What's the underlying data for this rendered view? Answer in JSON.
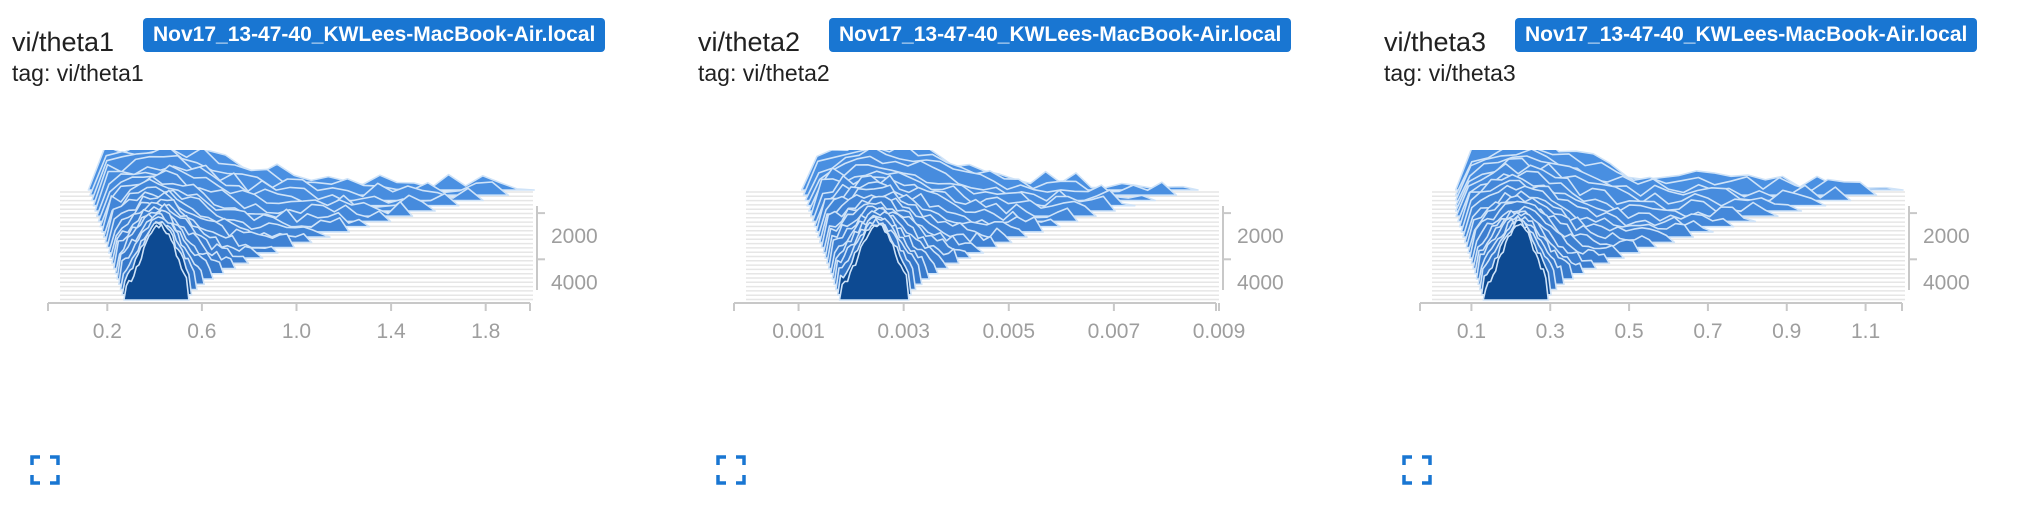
{
  "colors": {
    "accent": "#1976d2",
    "dark_blue": "#0d4a92",
    "mid_blue": "#4a90e2",
    "light_blue": "#a9d0f5",
    "grid": "#e6e6e6",
    "tick": "#9e9e9e"
  },
  "cards": [
    {
      "title": "vi/theta1",
      "run": "Nov17_13-47-40_KWLees-MacBook-Air.local",
      "tag": "tag: vi/theta1",
      "expand_icon": "fullscreen-icon"
    },
    {
      "title": "vi/theta2",
      "run": "Nov17_13-47-40_KWLees-MacBook-Air.local",
      "tag": "tag: vi/theta2",
      "expand_icon": "fullscreen-icon"
    },
    {
      "title": "vi/theta3",
      "run": "Nov17_13-47-40_KWLees-MacBook-Air.local",
      "tag": "tag: vi/theta3",
      "expand_icon": "fullscreen-icon"
    }
  ],
  "chart_data": [
    {
      "type": "histogram-offset",
      "title": "vi/theta1",
      "x_ticks": [
        "0.2",
        "0.6",
        "1.0",
        "1.4",
        "1.8"
      ],
      "x_tick_values": [
        0.2,
        0.6,
        1.0,
        1.4,
        1.8
      ],
      "xlim": [
        0.0,
        2.0
      ],
      "y_ticks": [
        "2000",
        "4000"
      ],
      "y_tick_values": [
        2000,
        4000
      ],
      "ylim": [
        0,
        5000
      ],
      "final_peak_center": 0.42,
      "final_peak_width": 0.25,
      "tail_max": 1.88
    },
    {
      "type": "histogram-offset",
      "title": "vi/theta2",
      "x_ticks": [
        "0.001",
        "0.003",
        "0.005",
        "0.007",
        "0.009"
      ],
      "x_tick_values": [
        0.001,
        0.003,
        0.005,
        0.007,
        0.009
      ],
      "xlim": [
        0.0,
        0.009
      ],
      "y_ticks": [
        "2000",
        "4000"
      ],
      "y_tick_values": [
        2000,
        4000
      ],
      "ylim": [
        0,
        5000
      ],
      "final_peak_center": 0.0025,
      "final_peak_width": 0.0012,
      "tail_max": 0.008
    },
    {
      "type": "histogram-offset",
      "title": "vi/theta3",
      "x_ticks": [
        "0.1",
        "0.3",
        "0.5",
        "0.7",
        "0.9",
        "1.1"
      ],
      "x_tick_values": [
        0.1,
        0.3,
        0.5,
        0.7,
        0.9,
        1.1
      ],
      "xlim": [
        0.0,
        1.2
      ],
      "y_ticks": [
        "2000",
        "4000"
      ],
      "y_tick_values": [
        2000,
        4000
      ],
      "ylim": [
        0,
        5000
      ],
      "final_peak_center": 0.22,
      "final_peak_width": 0.15,
      "tail_max": 1.12
    }
  ]
}
